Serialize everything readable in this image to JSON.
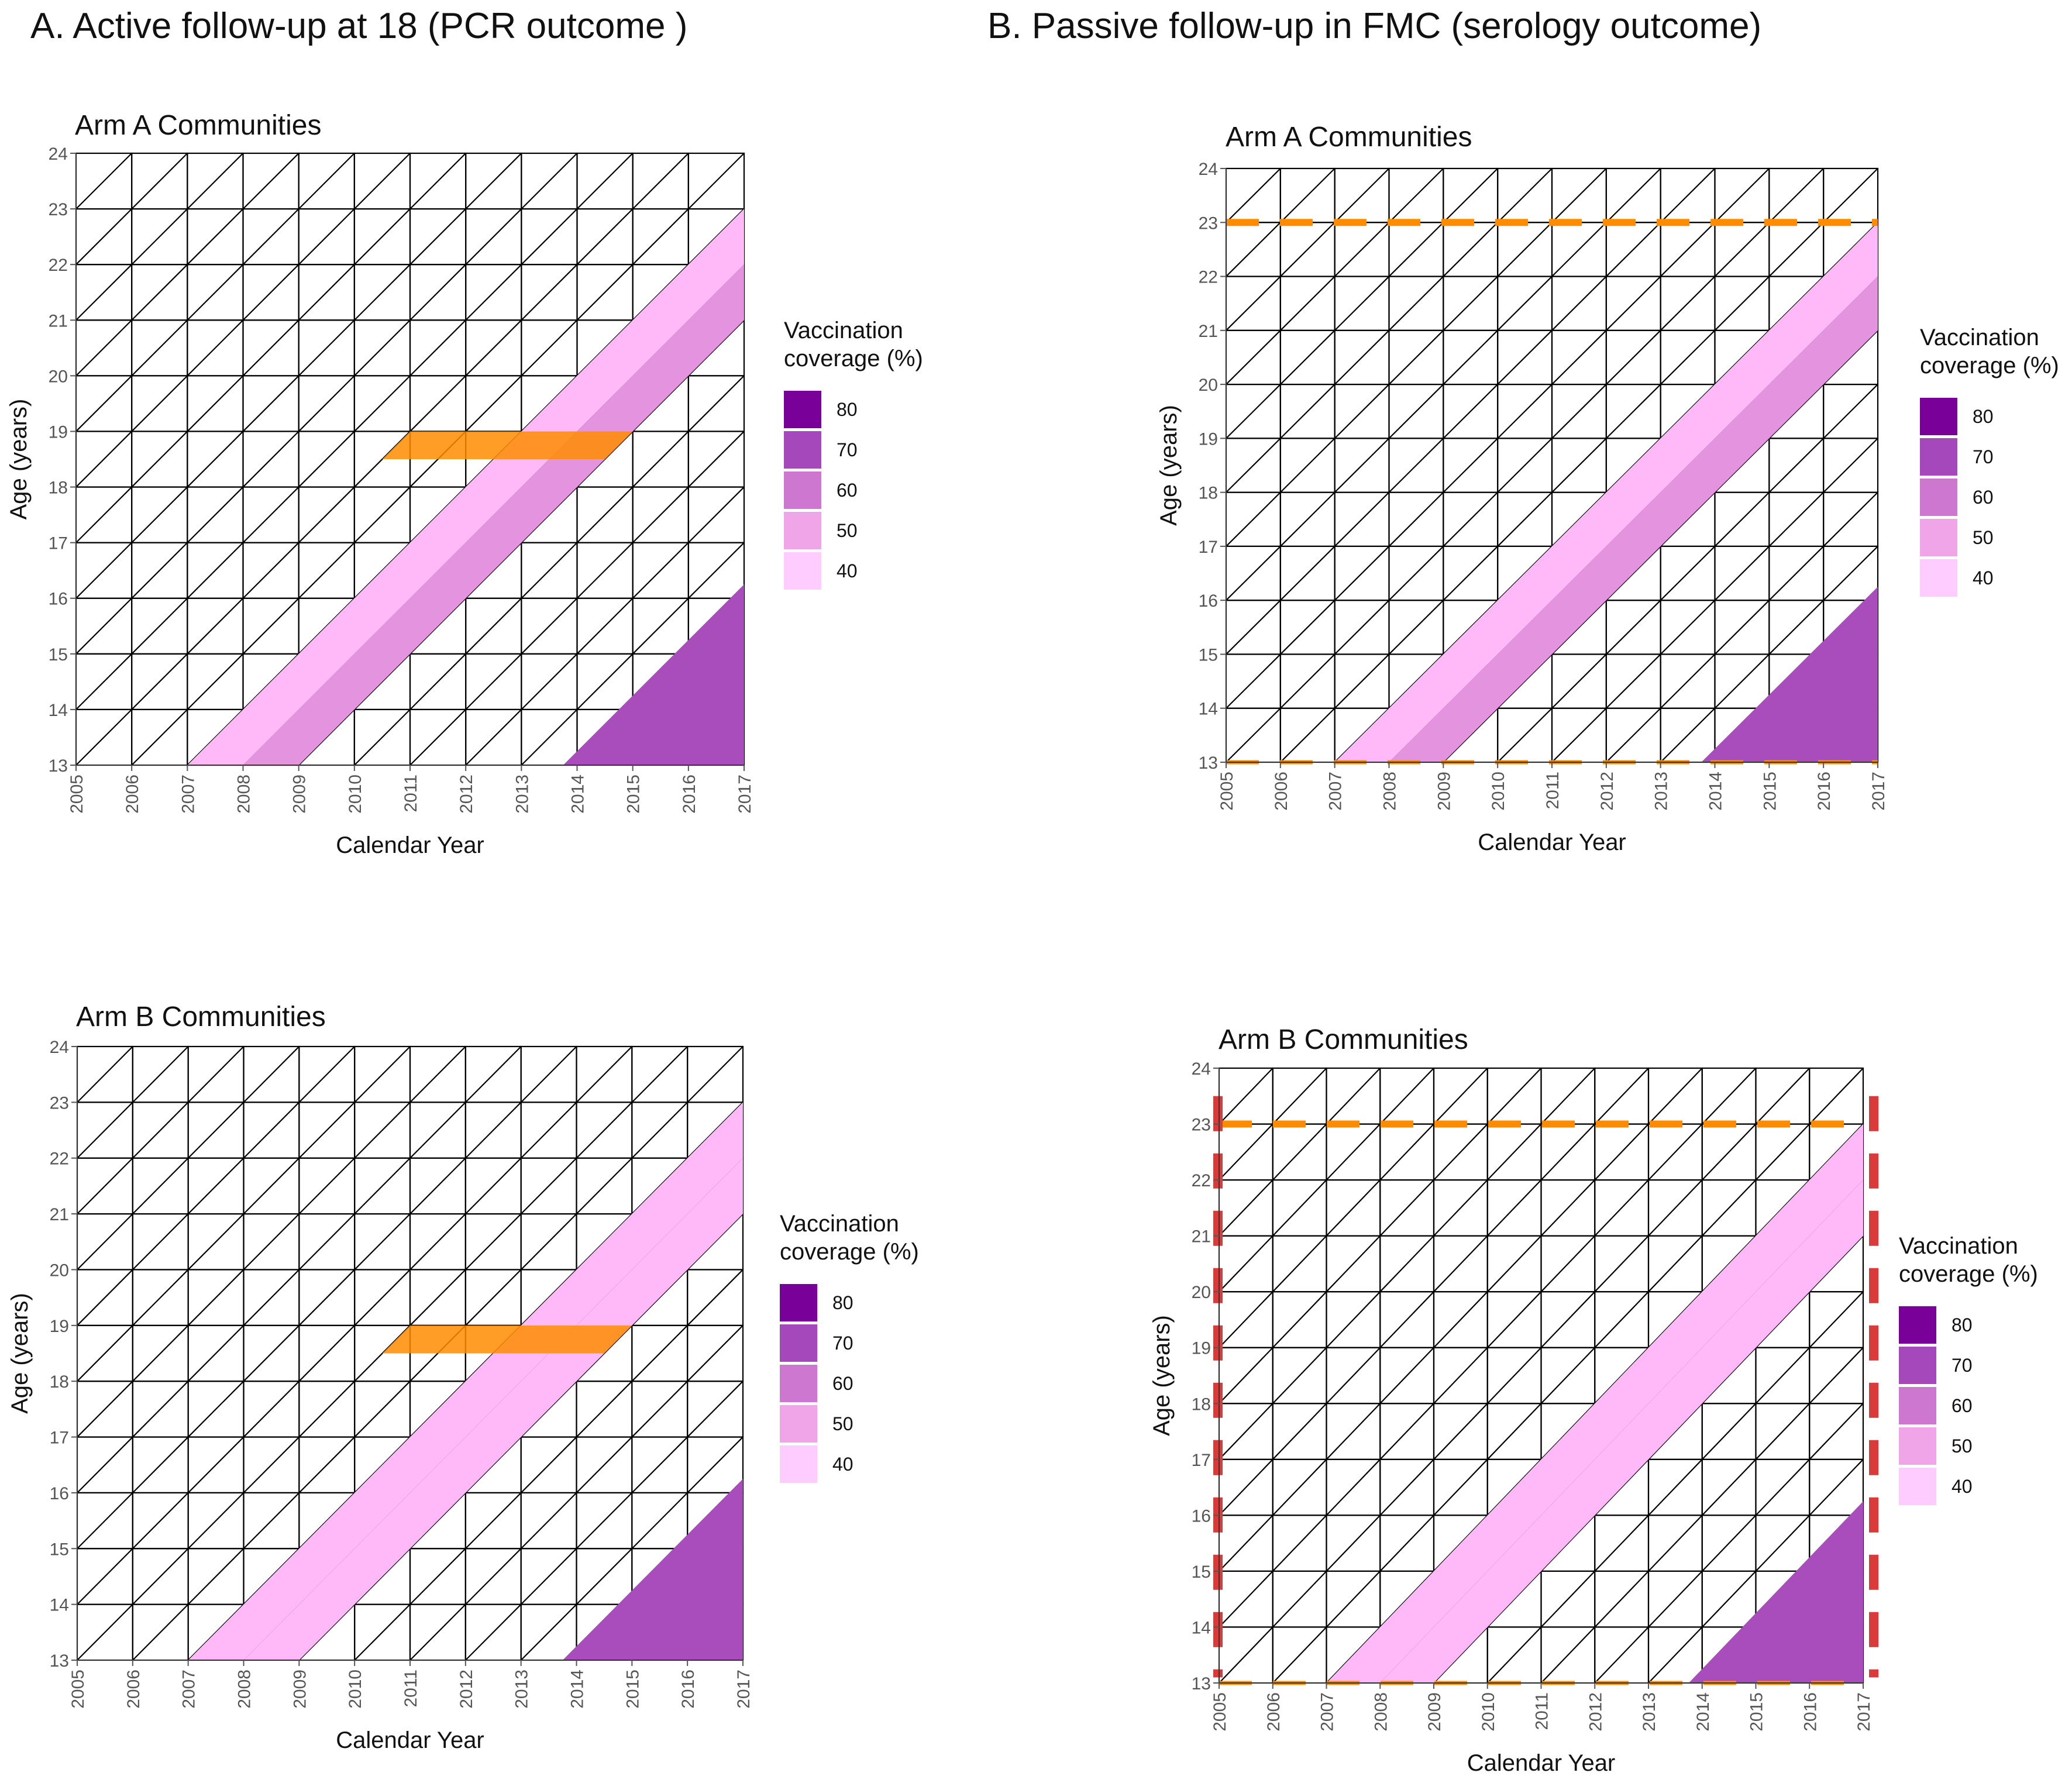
{
  "figure": {
    "section_a_title": "A. Active follow-up at 18 (PCR outcome )",
    "section_b_title": "B. Passive follow-up in FMC (serology outcome)"
  },
  "colors": {
    "c40": "#FFCCFF",
    "c45": "#FFB8F8",
    "c50": "#F0A5E8",
    "c55": "#E494DF",
    "c60": "#CE77D0",
    "c70": "#A448BB",
    "c75": "#A84DBB",
    "c80": "#7A009A",
    "grid": "#000000",
    "orange": "#FF8C00",
    "red": "#D93B3B"
  },
  "chart_data": [
    {
      "type": "heatmap",
      "panel": "A",
      "title": "Arm A Communities",
      "xlabel": "Calendar Year",
      "ylabel": "Age (years)",
      "xlim": [
        2005,
        2017
      ],
      "ylim": [
        13,
        24
      ],
      "xticks": [
        "2005",
        "2006",
        "2007",
        "2008",
        "2009",
        "2010",
        "2011",
        "2012",
        "2013",
        "2014",
        "2015",
        "2016",
        "2017"
      ],
      "yticks": [
        "13",
        "14",
        "15",
        "16",
        "17",
        "18",
        "19",
        "20",
        "21",
        "22",
        "23",
        "24"
      ],
      "legend_title_1": "Vaccination",
      "legend_title_2": "coverage (%)",
      "legend": [
        {
          "value": 80,
          "label": "80",
          "color": "#7A009A"
        },
        {
          "value": 70,
          "label": "70",
          "color": "#A448BB"
        },
        {
          "value": 60,
          "label": "60",
          "color": "#CE77D0"
        },
        {
          "value": 50,
          "label": "50",
          "color": "#F0A5E8"
        },
        {
          "value": 40,
          "label": "40",
          "color": "#FFCCFF"
        }
      ],
      "cohort_bands": [
        {
          "x_start": 2007,
          "x_end": 2008,
          "coverage": 45
        },
        {
          "x_start": 2008,
          "x_end": 2009,
          "coverage": 55
        },
        {
          "x_start": 2013.75,
          "x_end": 2017,
          "coverage": 75
        }
      ],
      "highlight_age": 18.75,
      "highlight_years": [
        2010.5,
        2015
      ],
      "dashed_age_lines": [],
      "dashed_vertical": false
    },
    {
      "type": "heatmap",
      "panel": "B",
      "title": "Arm A Communities",
      "xlabel": "Calendar Year",
      "ylabel": "Age (years)",
      "xlim": [
        2005,
        2017
      ],
      "ylim": [
        13,
        24
      ],
      "xticks": [
        "2005",
        "2006",
        "2007",
        "2008",
        "2009",
        "2010",
        "2011",
        "2012",
        "2013",
        "2014",
        "2015",
        "2016",
        "2017"
      ],
      "yticks": [
        "13",
        "14",
        "15",
        "16",
        "17",
        "18",
        "19",
        "20",
        "21",
        "22",
        "23",
        "24"
      ],
      "legend_title_1": "Vaccination",
      "legend_title_2": "coverage (%)",
      "legend": [
        {
          "value": 80,
          "label": "80",
          "color": "#7A009A"
        },
        {
          "value": 70,
          "label": "70",
          "color": "#A448BB"
        },
        {
          "value": 60,
          "label": "60",
          "color": "#CE77D0"
        },
        {
          "value": 50,
          "label": "50",
          "color": "#F0A5E8"
        },
        {
          "value": 40,
          "label": "40",
          "color": "#FFCCFF"
        }
      ],
      "cohort_bands": [
        {
          "x_start": 2007,
          "x_end": 2008,
          "coverage": 45
        },
        {
          "x_start": 2008,
          "x_end": 2009,
          "coverage": 55
        },
        {
          "x_start": 2013.75,
          "x_end": 2017,
          "coverage": 75
        }
      ],
      "highlight_age": null,
      "highlight_years": [],
      "dashed_age_lines": [
        13,
        23
      ],
      "dashed_vertical": false
    },
    {
      "type": "heatmap",
      "panel": "A",
      "title": "Arm B Communities",
      "xlabel": "Calendar Year",
      "ylabel": "Age (years)",
      "xlim": [
        2005,
        2017
      ],
      "ylim": [
        13,
        24
      ],
      "xticks": [
        "2005",
        "2006",
        "2007",
        "2008",
        "2009",
        "2010",
        "2011",
        "2012",
        "2013",
        "2014",
        "2015",
        "2016",
        "2017"
      ],
      "yticks": [
        "13",
        "14",
        "15",
        "16",
        "17",
        "18",
        "19",
        "20",
        "21",
        "22",
        "23",
        "24"
      ],
      "legend_title_1": "Vaccination",
      "legend_title_2": "coverage (%)",
      "legend": [
        {
          "value": 80,
          "label": "80",
          "color": "#7A009A"
        },
        {
          "value": 70,
          "label": "70",
          "color": "#A448BB"
        },
        {
          "value": 60,
          "label": "60",
          "color": "#CE77D0"
        },
        {
          "value": 50,
          "label": "50",
          "color": "#F0A5E8"
        },
        {
          "value": 40,
          "label": "40",
          "color": "#FFCCFF"
        }
      ],
      "cohort_bands": [
        {
          "x_start": 2007,
          "x_end": 2008,
          "coverage": 45
        },
        {
          "x_start": 2008,
          "x_end": 2009,
          "coverage": 45
        },
        {
          "x_start": 2013.75,
          "x_end": 2017,
          "coverage": 75
        }
      ],
      "highlight_age": 18.75,
      "highlight_years": [
        2010.5,
        2015
      ],
      "dashed_age_lines": [],
      "dashed_vertical": false
    },
    {
      "type": "heatmap",
      "panel": "B",
      "title": "Arm B Communities",
      "xlabel": "Calendar Year",
      "ylabel": "Age (years)",
      "xlim": [
        2005,
        2017
      ],
      "ylim": [
        13,
        24
      ],
      "xticks": [
        "2005",
        "2006",
        "2007",
        "2008",
        "2009",
        "2010",
        "2011",
        "2012",
        "2013",
        "2014",
        "2015",
        "2016",
        "2017"
      ],
      "yticks": [
        "13",
        "14",
        "15",
        "16",
        "17",
        "18",
        "19",
        "20",
        "21",
        "22",
        "23",
        "24"
      ],
      "legend_title_1": "Vaccination",
      "legend_title_2": "coverage (%)",
      "legend": [
        {
          "value": 80,
          "label": "80",
          "color": "#7A009A"
        },
        {
          "value": 70,
          "label": "70",
          "color": "#A448BB"
        },
        {
          "value": 60,
          "label": "60",
          "color": "#CE77D0"
        },
        {
          "value": 50,
          "label": "50",
          "color": "#F0A5E8"
        },
        {
          "value": 40,
          "label": "40",
          "color": "#FFCCFF"
        }
      ],
      "cohort_bands": [
        {
          "x_start": 2007,
          "x_end": 2008,
          "coverage": 45
        },
        {
          "x_start": 2008,
          "x_end": 2009,
          "coverage": 45
        },
        {
          "x_start": 2013.75,
          "x_end": 2017,
          "coverage": 75
        }
      ],
      "highlight_age": null,
      "highlight_years": [],
      "dashed_age_lines": [
        13,
        23
      ],
      "dashed_vertical": true
    }
  ]
}
